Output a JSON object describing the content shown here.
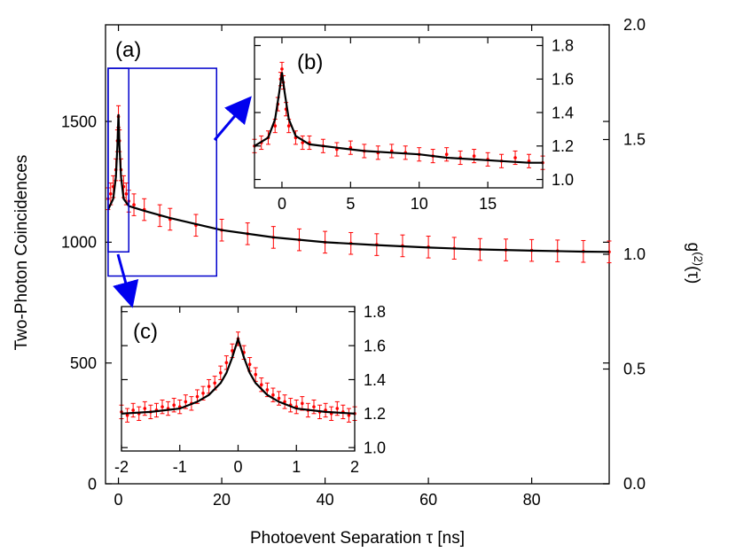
{
  "chart_data": [
    {
      "id": "main",
      "panel_label": "(a)",
      "type": "scatter",
      "xlabel": "Photoevent Separation τ [ns]",
      "ylabel": "Two-Photon Coincidences",
      "y2label": "g(2)(τ)",
      "xlim": [
        -2.5,
        95
      ],
      "ylim": [
        0,
        1900
      ],
      "y2lim": [
        0,
        2.0
      ],
      "xticks": [
        0,
        20,
        40,
        60,
        80
      ],
      "yticks": [
        0,
        500,
        1000,
        1500
      ],
      "y2ticks": [
        0.0,
        0.5,
        1.0,
        1.5,
        2.0
      ],
      "y2tick_labels": [
        "0.0",
        "0.5",
        "1.0",
        "1.5",
        "2.0"
      ],
      "series": [
        {
          "kind": "data_points_with_error_bars",
          "color": "#ff0000",
          "x": [
            -2,
            -1.5,
            -1,
            -0.5,
            -0.2,
            0,
            0.2,
            0.5,
            1,
            1.5,
            2,
            3,
            5,
            8,
            10,
            15,
            20,
            25,
            30,
            35,
            40,
            45,
            50,
            55,
            60,
            65,
            70,
            75,
            80,
            85,
            90,
            95
          ],
          "y": [
            1180,
            1200,
            1230,
            1300,
            1420,
            1520,
            1420,
            1300,
            1230,
            1200,
            1170,
            1155,
            1135,
            1110,
            1095,
            1070,
            1050,
            1035,
            1020,
            1010,
            1000,
            995,
            990,
            985,
            980,
            975,
            970,
            968,
            966,
            964,
            962,
            960
          ],
          "err": 45
        },
        {
          "kind": "fit_curve",
          "color": "#000000",
          "x": [
            -2,
            -1,
            -0.5,
            -0.2,
            0,
            0.2,
            0.5,
            1,
            2,
            5,
            10,
            20,
            30,
            40,
            50,
            60,
            70,
            80,
            90,
            95
          ],
          "y": [
            1135,
            1180,
            1270,
            1400,
            1530,
            1400,
            1270,
            1180,
            1150,
            1130,
            1100,
            1050,
            1020,
            1000,
            988,
            978,
            970,
            965,
            961,
            960
          ]
        }
      ],
      "annotation_boxes": [
        {
          "target": "(b)",
          "x": [
            -2,
            19
          ],
          "y": [
            860,
            1720
          ],
          "color": "#0000cc"
        },
        {
          "target": "(c)",
          "x": [
            -2,
            2
          ],
          "y": [
            960,
            1720
          ],
          "color": "#0000cc"
        }
      ]
    },
    {
      "id": "inset_b",
      "panel_label": "(b)",
      "type": "scatter",
      "xlim": [
        -2,
        19
      ],
      "ylim": [
        0.95,
        1.85
      ],
      "xticks": [
        0,
        5,
        10,
        15
      ],
      "yticks": [
        1.0,
        1.2,
        1.4,
        1.6,
        1.8
      ],
      "ytick_labels": [
        "1.0",
        "1.2",
        "1.4",
        "1.6",
        "1.8"
      ],
      "series": [
        {
          "kind": "data_points_with_error_bars",
          "color": "#ff0000",
          "x": [
            -2,
            -1.5,
            -1,
            -0.5,
            -0.3,
            -0.1,
            0,
            0.1,
            0.3,
            0.5,
            1,
            1.5,
            2,
            3,
            4,
            5,
            6,
            7,
            8,
            9,
            10,
            11,
            12,
            13,
            14,
            15,
            16,
            17,
            18,
            19
          ],
          "y": [
            1.2,
            1.22,
            1.25,
            1.32,
            1.45,
            1.6,
            1.66,
            1.58,
            1.42,
            1.32,
            1.25,
            1.22,
            1.22,
            1.2,
            1.18,
            1.19,
            1.17,
            1.16,
            1.17,
            1.16,
            1.15,
            1.14,
            1.15,
            1.13,
            1.14,
            1.12,
            1.11,
            1.13,
            1.11,
            1.1
          ],
          "err": 0.04
        },
        {
          "kind": "fit_curve",
          "color": "#000000",
          "x": [
            -2,
            -1,
            -0.5,
            -0.2,
            0,
            0.2,
            0.5,
            1,
            2,
            4,
            6,
            8,
            10,
            12,
            14,
            16,
            18,
            19
          ],
          "y": [
            1.2,
            1.25,
            1.36,
            1.52,
            1.64,
            1.52,
            1.36,
            1.26,
            1.21,
            1.19,
            1.17,
            1.16,
            1.15,
            1.13,
            1.12,
            1.11,
            1.1,
            1.1
          ]
        }
      ]
    },
    {
      "id": "inset_c",
      "panel_label": "(c)",
      "type": "scatter",
      "xlim": [
        -2,
        2
      ],
      "ylim": [
        0.98,
        1.83
      ],
      "xticks": [
        -2,
        -1,
        0,
        1,
        2
      ],
      "yticks": [
        1.0,
        1.2,
        1.4,
        1.6,
        1.8
      ],
      "ytick_labels": [
        "1.0",
        "1.2",
        "1.4",
        "1.6",
        "1.8"
      ],
      "series": [
        {
          "kind": "data_points_with_error_bars",
          "color": "#ff0000",
          "x": [
            -2,
            -1.9,
            -1.8,
            -1.7,
            -1.6,
            -1.5,
            -1.4,
            -1.3,
            -1.2,
            -1.1,
            -1.0,
            -0.9,
            -0.8,
            -0.7,
            -0.6,
            -0.5,
            -0.4,
            -0.3,
            -0.2,
            -0.1,
            0,
            0.1,
            0.2,
            0.3,
            0.4,
            0.5,
            0.6,
            0.7,
            0.8,
            0.9,
            1.0,
            1.1,
            1.2,
            1.3,
            1.4,
            1.5,
            1.6,
            1.7,
            1.8,
            1.9,
            2.0
          ],
          "y": [
            1.21,
            1.19,
            1.22,
            1.2,
            1.23,
            1.21,
            1.22,
            1.24,
            1.23,
            1.25,
            1.24,
            1.27,
            1.26,
            1.3,
            1.32,
            1.36,
            1.38,
            1.44,
            1.5,
            1.57,
            1.64,
            1.56,
            1.49,
            1.43,
            1.37,
            1.34,
            1.31,
            1.29,
            1.27,
            1.25,
            1.24,
            1.26,
            1.22,
            1.24,
            1.21,
            1.22,
            1.2,
            1.23,
            1.21,
            1.19,
            1.2
          ],
          "err": 0.04
        },
        {
          "kind": "fit_curve",
          "color": "#000000",
          "x": [
            -2,
            -1.5,
            -1.0,
            -0.7,
            -0.5,
            -0.3,
            -0.2,
            -0.1,
            0,
            0.1,
            0.2,
            0.3,
            0.5,
            0.7,
            1.0,
            1.5,
            2
          ],
          "y": [
            1.2,
            1.21,
            1.23,
            1.27,
            1.31,
            1.38,
            1.44,
            1.53,
            1.64,
            1.53,
            1.44,
            1.38,
            1.31,
            1.27,
            1.23,
            1.21,
            1.2
          ]
        }
      ]
    }
  ]
}
